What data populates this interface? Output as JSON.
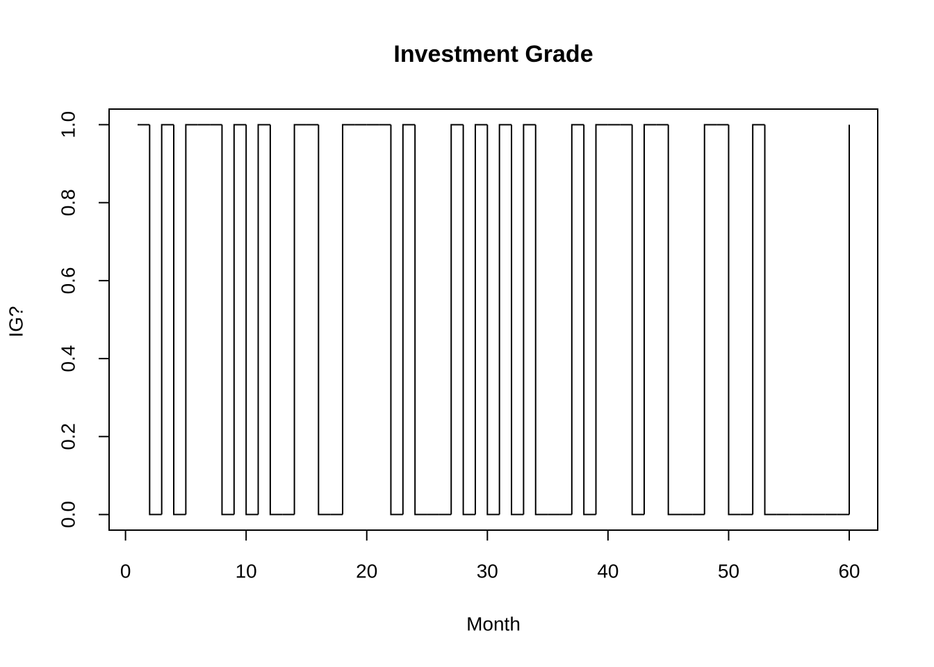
{
  "chart_data": {
    "type": "step",
    "title": "Investment Grade",
    "x_label": "Month",
    "y_label": "IG?",
    "x": [
      1,
      2,
      3,
      4,
      5,
      6,
      7,
      8,
      9,
      10,
      11,
      12,
      13,
      14,
      15,
      16,
      17,
      18,
      19,
      20,
      21,
      22,
      23,
      24,
      25,
      26,
      27,
      28,
      29,
      30,
      31,
      32,
      33,
      34,
      35,
      36,
      37,
      38,
      39,
      40,
      41,
      42,
      43,
      44,
      45,
      46,
      47,
      48,
      49,
      50,
      51,
      52,
      53,
      54,
      55,
      56,
      57,
      58,
      59,
      60
    ],
    "series": [
      {
        "color": "#000000",
        "values": [
          1,
          0,
          1,
          0,
          1,
          1,
          1,
          0,
          1,
          0,
          1,
          0,
          0,
          1,
          1,
          0,
          0,
          1,
          1,
          1,
          1,
          0,
          1,
          0,
          0,
          0,
          1,
          0,
          1,
          0,
          1,
          0,
          1,
          0,
          0,
          0,
          1,
          0,
          1,
          1,
          1,
          0,
          1,
          1,
          0,
          0,
          0,
          1,
          1,
          0,
          0,
          1,
          0,
          0,
          0,
          0,
          0,
          0,
          0,
          1
        ]
      }
    ],
    "xlim": [
      -1.36,
      62.36
    ],
    "ylim": [
      -0.04,
      1.04
    ],
    "xticks": [
      0,
      10,
      20,
      30,
      40,
      50,
      60
    ],
    "yticks": [
      {
        "value": 0,
        "label": "0.0"
      },
      0.2,
      0.4,
      0.6,
      0.8,
      {
        "value": 1,
        "label": "1.0"
      }
    ]
  }
}
